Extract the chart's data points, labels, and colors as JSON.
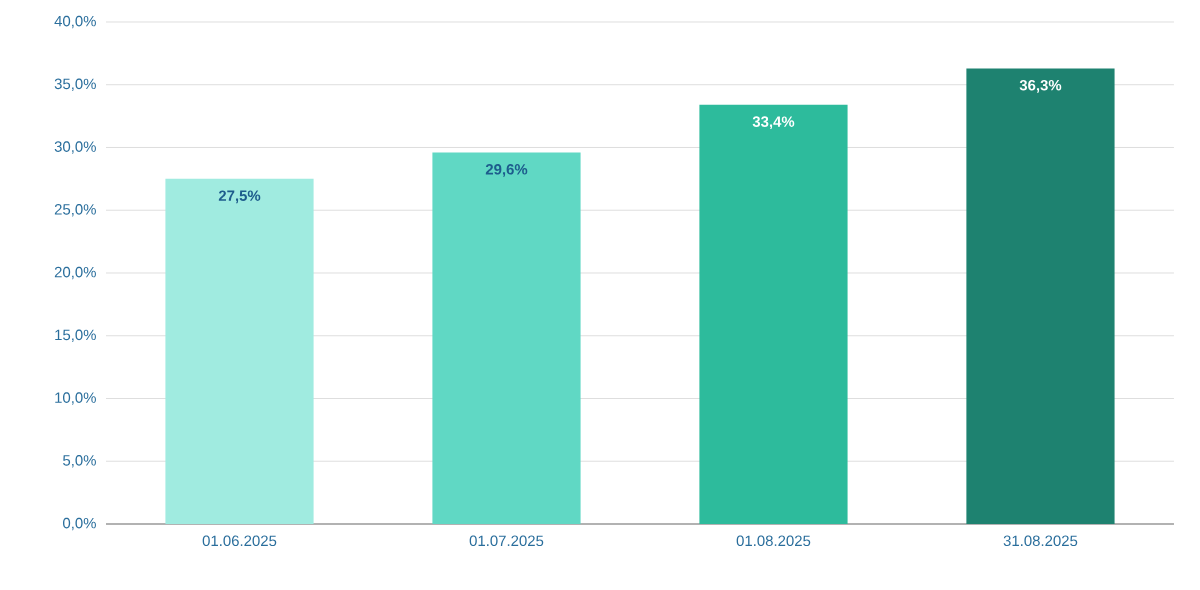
{
  "chart_data": {
    "type": "bar",
    "categories": [
      "01.06.2025",
      "01.07.2025",
      "01.08.2025",
      "31.08.2025"
    ],
    "values": [
      27.5,
      29.6,
      33.4,
      36.3
    ],
    "colors": [
      "#a0ebe0",
      "#60d8c4",
      "#2dbb9c",
      "#1e8270"
    ],
    "value_labels": [
      "27,5%",
      "29,6%",
      "33,4%",
      "36,3%"
    ],
    "ylim": [
      0,
      40
    ],
    "yticks": [
      {
        "value": 0,
        "label": "0,0%"
      },
      {
        "value": 5,
        "label": "5,0%"
      },
      {
        "value": 10,
        "label": "10,0%"
      },
      {
        "value": 15,
        "label": "15,0%"
      },
      {
        "value": 20,
        "label": "20,0%"
      },
      {
        "value": 25,
        "label": "25,0%"
      },
      {
        "value": 30,
        "label": "30,0%"
      },
      {
        "value": 35,
        "label": "35,0%"
      },
      {
        "value": 40,
        "label": "40,0%"
      }
    ],
    "grid": "y"
  }
}
